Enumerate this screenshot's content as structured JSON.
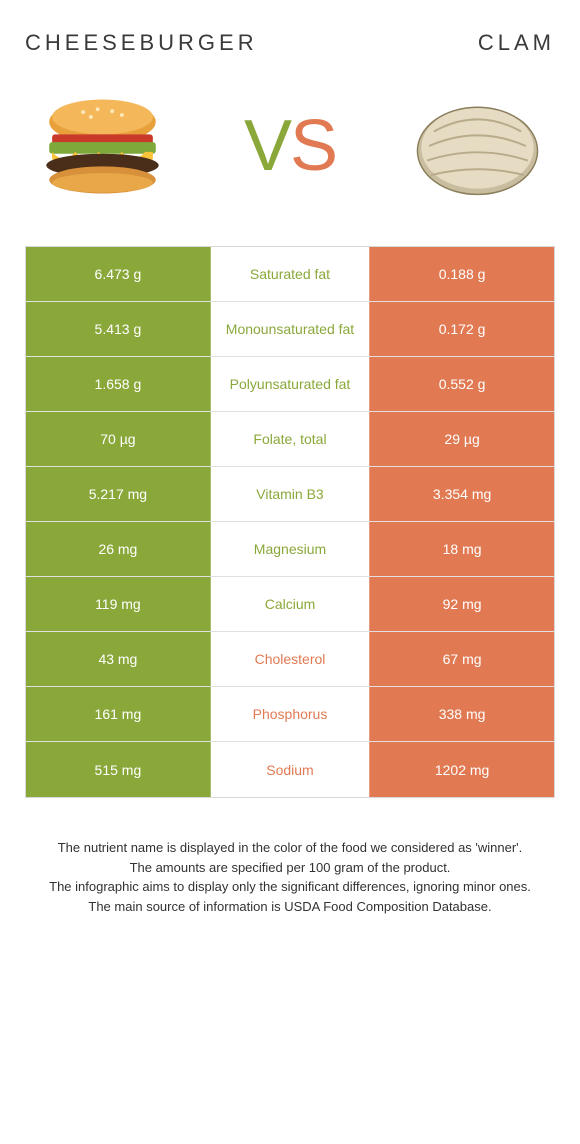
{
  "header": {
    "left_title": "CHEESEBURGER",
    "right_title": "CLAM"
  },
  "vs": {
    "v": "V",
    "s": "S"
  },
  "colors": {
    "green": "#8aa83a",
    "orange": "#e17a53",
    "text": "#3a3a3a",
    "border": "#d8d8d8"
  },
  "table": {
    "rows": [
      {
        "left": "6.473 g",
        "label": "Saturated fat",
        "right": "0.188 g",
        "winner": "green"
      },
      {
        "left": "5.413 g",
        "label": "Monounsaturated fat",
        "right": "0.172 g",
        "winner": "green"
      },
      {
        "left": "1.658 g",
        "label": "Polyunsaturated fat",
        "right": "0.552 g",
        "winner": "green"
      },
      {
        "left": "70 µg",
        "label": "Folate, total",
        "right": "29 µg",
        "winner": "green"
      },
      {
        "left": "5.217 mg",
        "label": "Vitamin B3",
        "right": "3.354 mg",
        "winner": "green"
      },
      {
        "left": "26 mg",
        "label": "Magnesium",
        "right": "18 mg",
        "winner": "green"
      },
      {
        "left": "119 mg",
        "label": "Calcium",
        "right": "92 mg",
        "winner": "green"
      },
      {
        "left": "43 mg",
        "label": "Cholesterol",
        "right": "67 mg",
        "winner": "orange"
      },
      {
        "left": "161 mg",
        "label": "Phosphorus",
        "right": "338 mg",
        "winner": "orange"
      },
      {
        "left": "515 mg",
        "label": "Sodium",
        "right": "1202 mg",
        "winner": "orange"
      }
    ]
  },
  "footer": {
    "line1": "The nutrient name is displayed in the color of the food we considered as 'winner'.",
    "line2": "The amounts are specified per 100 gram of the product.",
    "line3": "The infographic aims to display only the significant differences, ignoring minor ones.",
    "line4": "The main source of information is USDA Food Composition Database."
  }
}
